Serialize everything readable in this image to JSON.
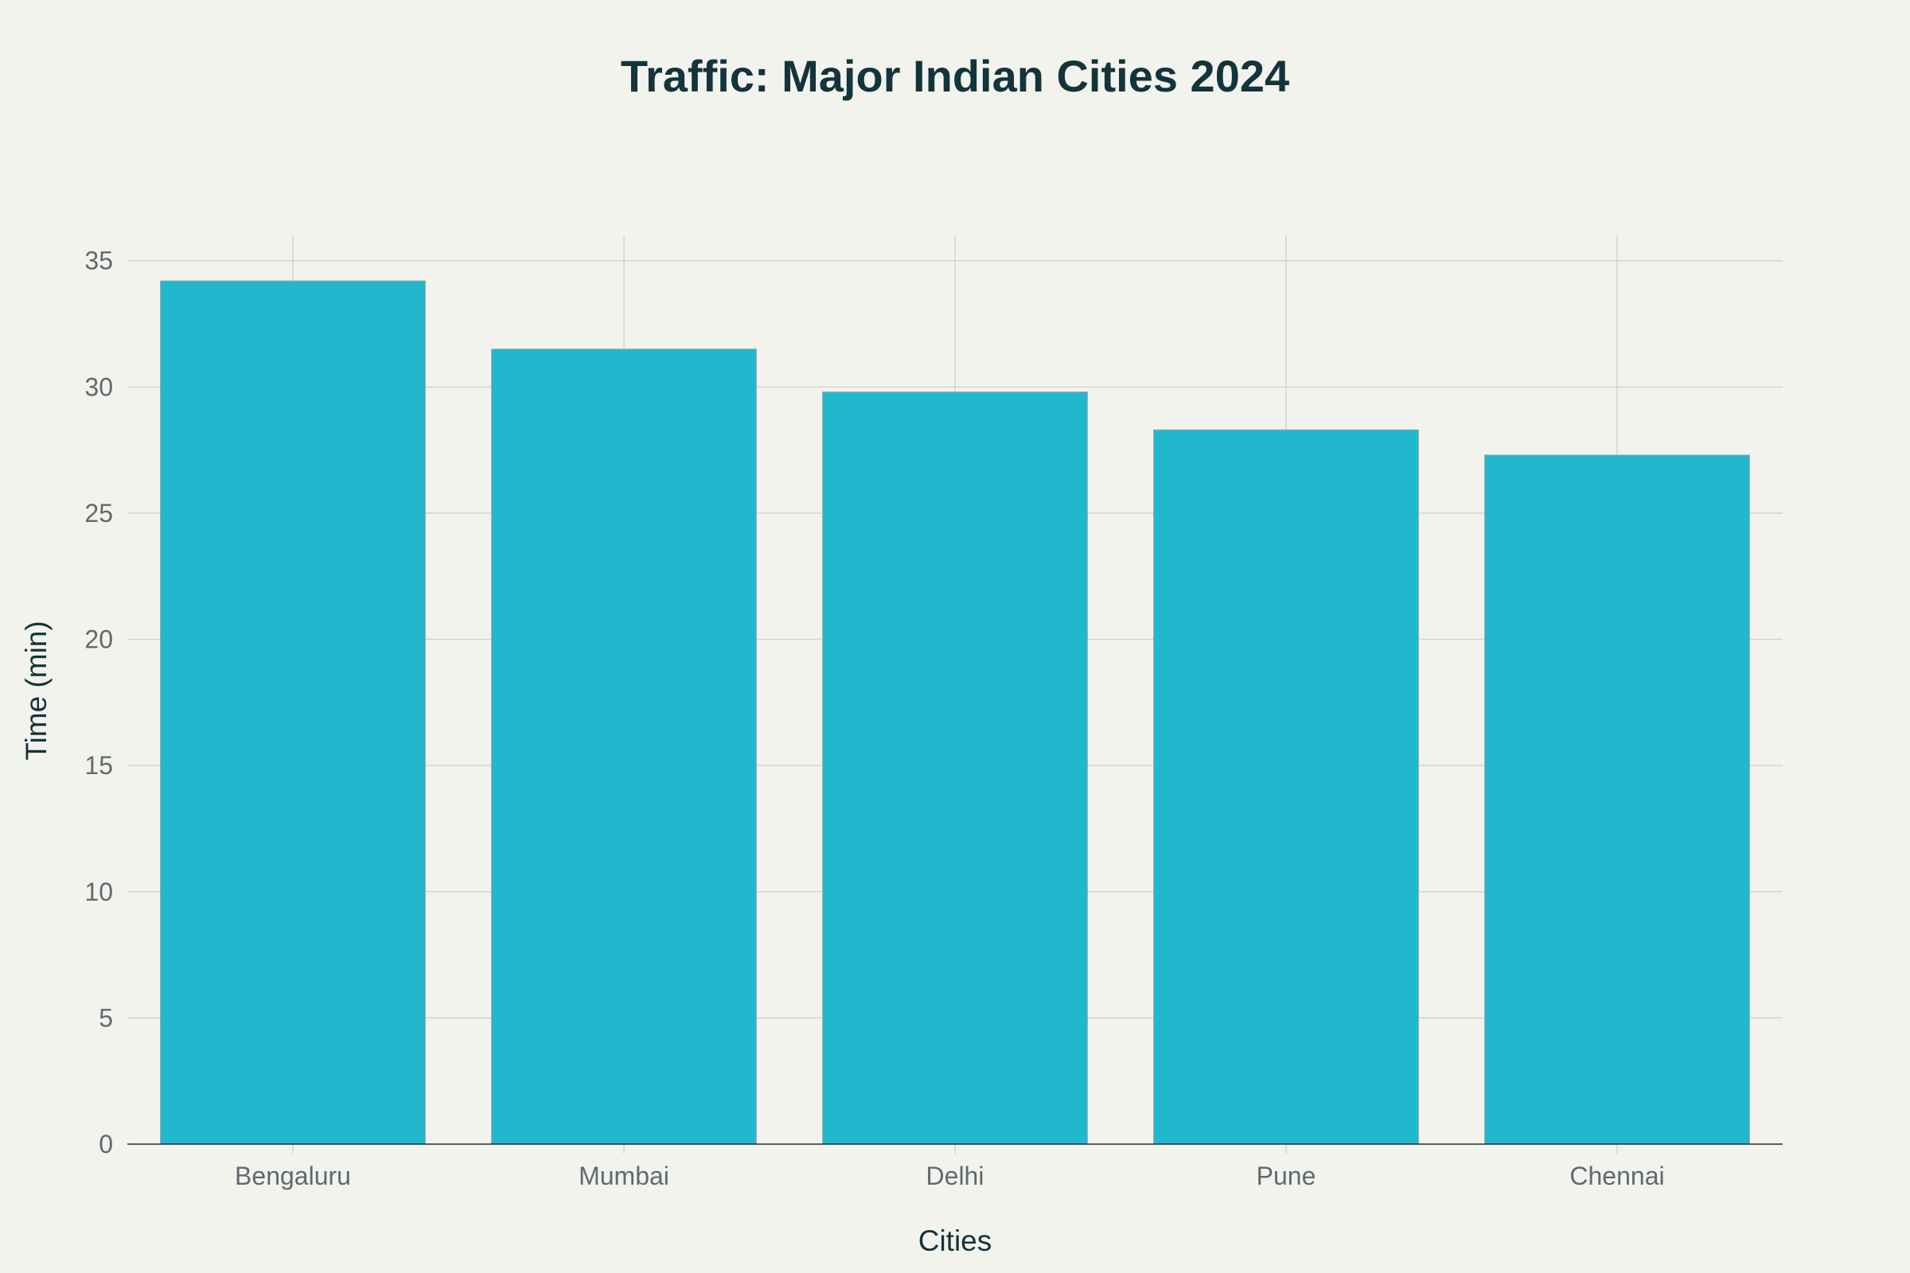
{
  "chart_data": {
    "type": "bar",
    "title": "Traffic: Major Indian Cities 2024",
    "xlabel": "Cities",
    "ylabel": "Time (min)",
    "categories": [
      "Bengaluru",
      "Mumbai",
      "Delhi",
      "Pune",
      "Chennai"
    ],
    "values": [
      34.2,
      31.5,
      29.8,
      28.3,
      27.3
    ],
    "ylim": [
      0,
      36
    ],
    "yticks": [
      0,
      5,
      10,
      15,
      20,
      25,
      30,
      35
    ],
    "grid": true,
    "legend": "none",
    "bar_color": "#21b8cd",
    "background_color": "#f3f3ee"
  }
}
